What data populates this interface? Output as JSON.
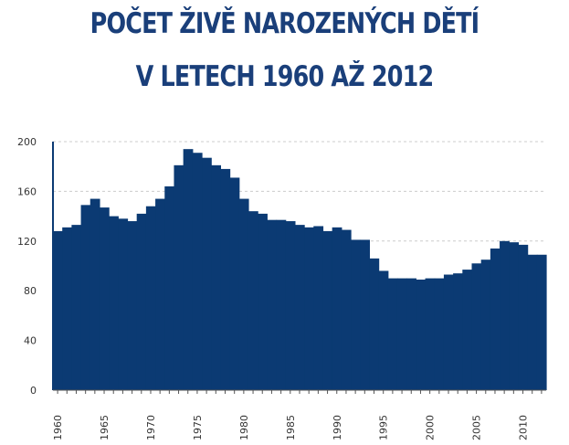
{
  "title_line1": "POČET ŽIVĚ NAROZENÝCH DĚTÍ",
  "title_line2": "V LETECH 1960 AŽ 2012",
  "colors": {
    "bar": "#0b3a73",
    "title": "#1a3f7a",
    "grid": "#cccccc"
  },
  "chart_data": {
    "type": "bar",
    "x": [
      1960,
      1961,
      1962,
      1963,
      1964,
      1965,
      1966,
      1967,
      1968,
      1969,
      1970,
      1971,
      1972,
      1973,
      1974,
      1975,
      1976,
      1977,
      1978,
      1979,
      1980,
      1981,
      1982,
      1983,
      1984,
      1985,
      1986,
      1987,
      1988,
      1989,
      1990,
      1991,
      1992,
      1993,
      1994,
      1995,
      1996,
      1997,
      1998,
      1999,
      2000,
      2001,
      2002,
      2003,
      2004,
      2005,
      2006,
      2007,
      2008,
      2009,
      2010,
      2011,
      2012
    ],
    "values": [
      128,
      131,
      133,
      149,
      154,
      147,
      140,
      138,
      136,
      142,
      148,
      154,
      164,
      181,
      194,
      191,
      187,
      181,
      178,
      171,
      154,
      144,
      142,
      137,
      137,
      136,
      133,
      131,
      132,
      128,
      131,
      129,
      121,
      121,
      106,
      96,
      90,
      90,
      90,
      89,
      90,
      90,
      93,
      94,
      97,
      102,
      105,
      114,
      120,
      119,
      117,
      109,
      109
    ],
    "ylim": [
      0,
      200
    ],
    "yticks": [
      0,
      40,
      80,
      120,
      160,
      200
    ],
    "xtick_labels": [
      "1960",
      "1965",
      "1970",
      "1975",
      "1980",
      "1985",
      "1990",
      "1995",
      "2000",
      "2005",
      "2010"
    ],
    "grid": true
  }
}
